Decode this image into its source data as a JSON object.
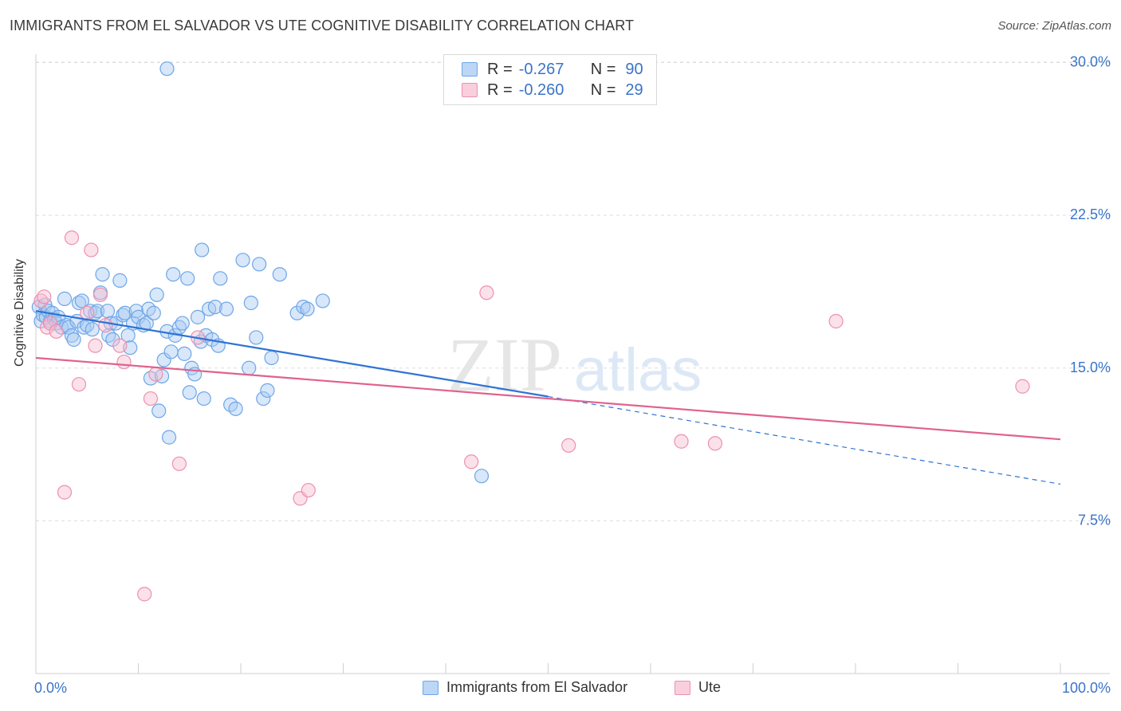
{
  "header": {
    "title": "IMMIGRANTS FROM EL SALVADOR VS UTE COGNITIVE DISABILITY CORRELATION CHART",
    "source": "Source: ZipAtlas.com"
  },
  "watermark": {
    "zip": "ZIP",
    "atlas": "atlas"
  },
  "colors": {
    "blue": "#6ea6e8",
    "blue_fill": "#a9c9f2",
    "blue_line": "#2f73d4",
    "pink": "#ee90ae",
    "pink_fill": "#f6bdd0",
    "pink_line": "#e0628c",
    "axis_text": "#3a74c9",
    "grid": "#dddddd"
  },
  "stats": [
    {
      "r_label": "R =",
      "r_value": "-0.267",
      "n_label": "N =",
      "n_value": "90"
    },
    {
      "r_label": "R =",
      "r_value": "-0.260",
      "n_label": "N =",
      "n_value": "29"
    }
  ],
  "chart_data": {
    "type": "scatter",
    "title": "IMMIGRANTS FROM EL SALVADOR VS UTE COGNITIVE DISABILITY CORRELATION CHART",
    "xlabel": "",
    "ylabel": "Cognitive Disability",
    "xlim": [
      0,
      100
    ],
    "ylim": [
      0,
      31
    ],
    "x_tick_labels": [
      "0.0%",
      "100.0%"
    ],
    "y_ticks": [
      7.5,
      15.0,
      22.5,
      30.0
    ],
    "y_tick_labels": [
      "7.5%",
      "15.0%",
      "22.5%",
      "30.0%"
    ],
    "grid": true,
    "legend_position": "bottom",
    "series": [
      {
        "name": "Immigrants from El Salvador",
        "color": "#6ea6e8",
        "trend": {
          "x0": 0,
          "y0": 17.8,
          "x1": 50,
          "y1": 13.6,
          "dashed_to_x": 100,
          "dashed_to_y": 9.3
        },
        "points": [
          [
            0.3,
            18.0
          ],
          [
            0.5,
            17.3
          ],
          [
            0.7,
            17.6
          ],
          [
            0.9,
            18.1
          ],
          [
            1.0,
            17.5
          ],
          [
            1.2,
            17.8
          ],
          [
            1.4,
            17.3
          ],
          [
            1.6,
            17.7
          ],
          [
            1.8,
            17.4
          ],
          [
            2.0,
            17.2
          ],
          [
            2.2,
            17.5
          ],
          [
            2.5,
            17.0
          ],
          [
            2.8,
            18.4
          ],
          [
            3.0,
            17.1
          ],
          [
            3.2,
            17.0
          ],
          [
            3.5,
            16.6
          ],
          [
            3.7,
            16.4
          ],
          [
            4.0,
            17.3
          ],
          [
            4.2,
            18.2
          ],
          [
            4.5,
            18.3
          ],
          [
            4.7,
            17.0
          ],
          [
            5.0,
            17.1
          ],
          [
            5.3,
            17.8
          ],
          [
            5.5,
            16.9
          ],
          [
            5.8,
            17.7
          ],
          [
            6.0,
            17.8
          ],
          [
            6.3,
            18.7
          ],
          [
            6.5,
            19.6
          ],
          [
            7.0,
            17.8
          ],
          [
            7.3,
            17.2
          ],
          [
            7.1,
            16.6
          ],
          [
            7.5,
            16.4
          ],
          [
            7.8,
            17.2
          ],
          [
            8.2,
            19.3
          ],
          [
            8.5,
            17.6
          ],
          [
            8.7,
            17.7
          ],
          [
            9.0,
            16.6
          ],
          [
            9.2,
            16.0
          ],
          [
            9.5,
            17.2
          ],
          [
            9.8,
            17.8
          ],
          [
            10.0,
            17.5
          ],
          [
            10.5,
            17.1
          ],
          [
            10.8,
            17.2
          ],
          [
            11.0,
            17.9
          ],
          [
            11.2,
            14.5
          ],
          [
            11.5,
            17.7
          ],
          [
            11.8,
            18.6
          ],
          [
            12.0,
            12.9
          ],
          [
            12.3,
            14.6
          ],
          [
            12.5,
            15.4
          ],
          [
            12.8,
            16.8
          ],
          [
            13.0,
            11.6
          ],
          [
            13.2,
            15.8
          ],
          [
            13.4,
            19.6
          ],
          [
            13.6,
            16.6
          ],
          [
            14.0,
            17.0
          ],
          [
            14.3,
            17.2
          ],
          [
            14.5,
            15.7
          ],
          [
            14.8,
            19.4
          ],
          [
            15.0,
            13.8
          ],
          [
            15.2,
            15.0
          ],
          [
            15.5,
            14.7
          ],
          [
            15.8,
            17.5
          ],
          [
            16.1,
            16.3
          ],
          [
            16.4,
            13.5
          ],
          [
            16.6,
            16.6
          ],
          [
            16.9,
            17.9
          ],
          [
            17.2,
            16.4
          ],
          [
            17.5,
            18.0
          ],
          [
            17.8,
            16.1
          ],
          [
            18.0,
            19.4
          ],
          [
            18.6,
            17.9
          ],
          [
            19.0,
            13.2
          ],
          [
            19.5,
            13.0
          ],
          [
            20.2,
            20.3
          ],
          [
            20.8,
            15.0
          ],
          [
            21.0,
            18.2
          ],
          [
            21.5,
            16.5
          ],
          [
            21.8,
            20.1
          ],
          [
            22.2,
            13.5
          ],
          [
            22.6,
            13.9
          ],
          [
            23.0,
            15.5
          ],
          [
            23.8,
            19.6
          ],
          [
            25.5,
            17.7
          ],
          [
            26.1,
            18.0
          ],
          [
            26.5,
            17.9
          ],
          [
            28.0,
            18.3
          ],
          [
            16.2,
            20.8
          ],
          [
            12.8,
            29.7
          ],
          [
            43.5,
            9.7
          ]
        ]
      },
      {
        "name": "Ute",
        "color": "#ee90ae",
        "trend": {
          "x0": 0,
          "y0": 15.5,
          "x1": 100,
          "y1": 11.5
        },
        "points": [
          [
            0.5,
            18.3
          ],
          [
            0.8,
            18.5
          ],
          [
            1.1,
            17.0
          ],
          [
            1.4,
            17.2
          ],
          [
            2.0,
            16.8
          ],
          [
            2.8,
            8.9
          ],
          [
            3.5,
            21.4
          ],
          [
            4.2,
            14.2
          ],
          [
            5.0,
            17.7
          ],
          [
            5.4,
            20.8
          ],
          [
            5.8,
            16.1
          ],
          [
            6.3,
            18.6
          ],
          [
            6.8,
            17.1
          ],
          [
            8.2,
            16.1
          ],
          [
            8.6,
            15.3
          ],
          [
            10.6,
            3.9
          ],
          [
            11.2,
            13.5
          ],
          [
            11.7,
            14.7
          ],
          [
            14.0,
            10.3
          ],
          [
            15.8,
            16.5
          ],
          [
            25.8,
            8.6
          ],
          [
            26.6,
            9.0
          ],
          [
            42.5,
            10.4
          ],
          [
            44.0,
            18.7
          ],
          [
            52.0,
            11.2
          ],
          [
            63.0,
            11.4
          ],
          [
            66.3,
            11.3
          ],
          [
            78.1,
            17.3
          ],
          [
            96.3,
            14.1
          ]
        ]
      }
    ]
  },
  "legend": {
    "items": [
      {
        "label": "Immigrants from El Salvador"
      },
      {
        "label": "Ute"
      }
    ]
  }
}
